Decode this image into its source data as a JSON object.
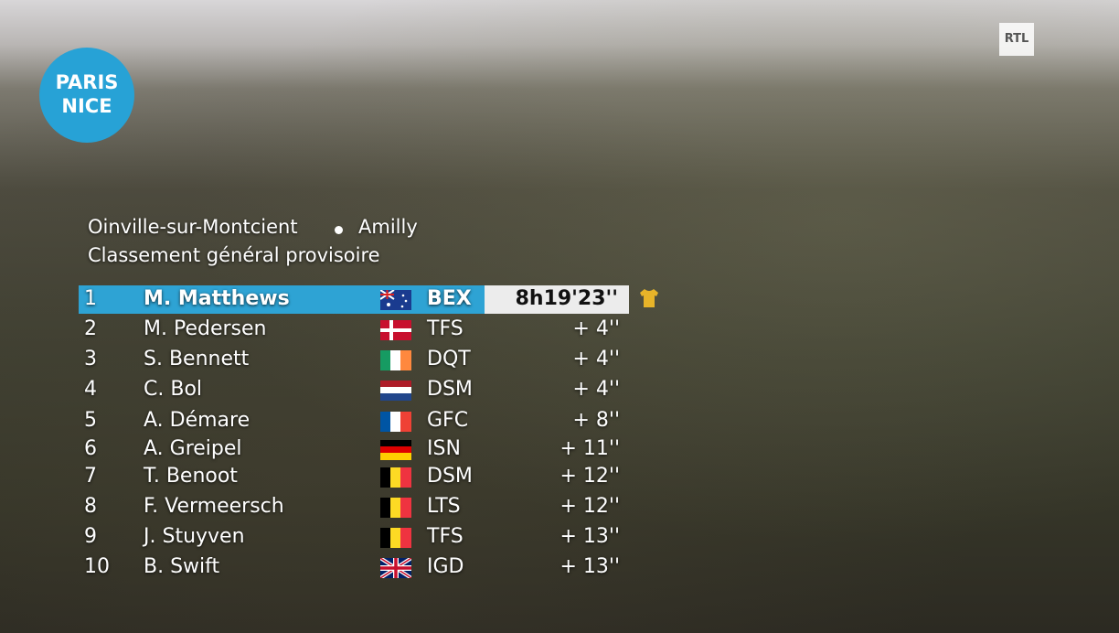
{
  "logo": {
    "line1": "PARIS",
    "line2": "NICE"
  },
  "broadcaster": "RTL",
  "header": {
    "route": [
      "Oinville-sur-Montcient",
      "Amilly"
    ],
    "subtitle": "Classement général provisoire"
  },
  "table": {
    "rows": [
      [
        1,
        "M. Matthews",
        "BEX",
        "8h19'23''"
      ],
      [
        2,
        "M. Pedersen",
        "TFS",
        "+  4''"
      ],
      [
        3,
        "S. Bennett",
        "DQT",
        "+  4''"
      ],
      [
        4,
        "C. Bol",
        "DSM",
        "+  4''"
      ],
      [
        5,
        "A. Démare",
        "GFC",
        "+  8''"
      ],
      [
        6,
        "A. Greipel",
        "ISN",
        "+ 11''"
      ],
      [
        7,
        "T. Benoot",
        "DSM",
        "+ 12''"
      ],
      [
        8,
        "F. Vermeersch",
        "LTS",
        "+ 12''"
      ],
      [
        9,
        "J. Stuyven",
        "TFS",
        "+ 13''"
      ],
      [
        10,
        "B. Swift",
        "IGD",
        "+ 13''"
      ]
    ]
  }
}
